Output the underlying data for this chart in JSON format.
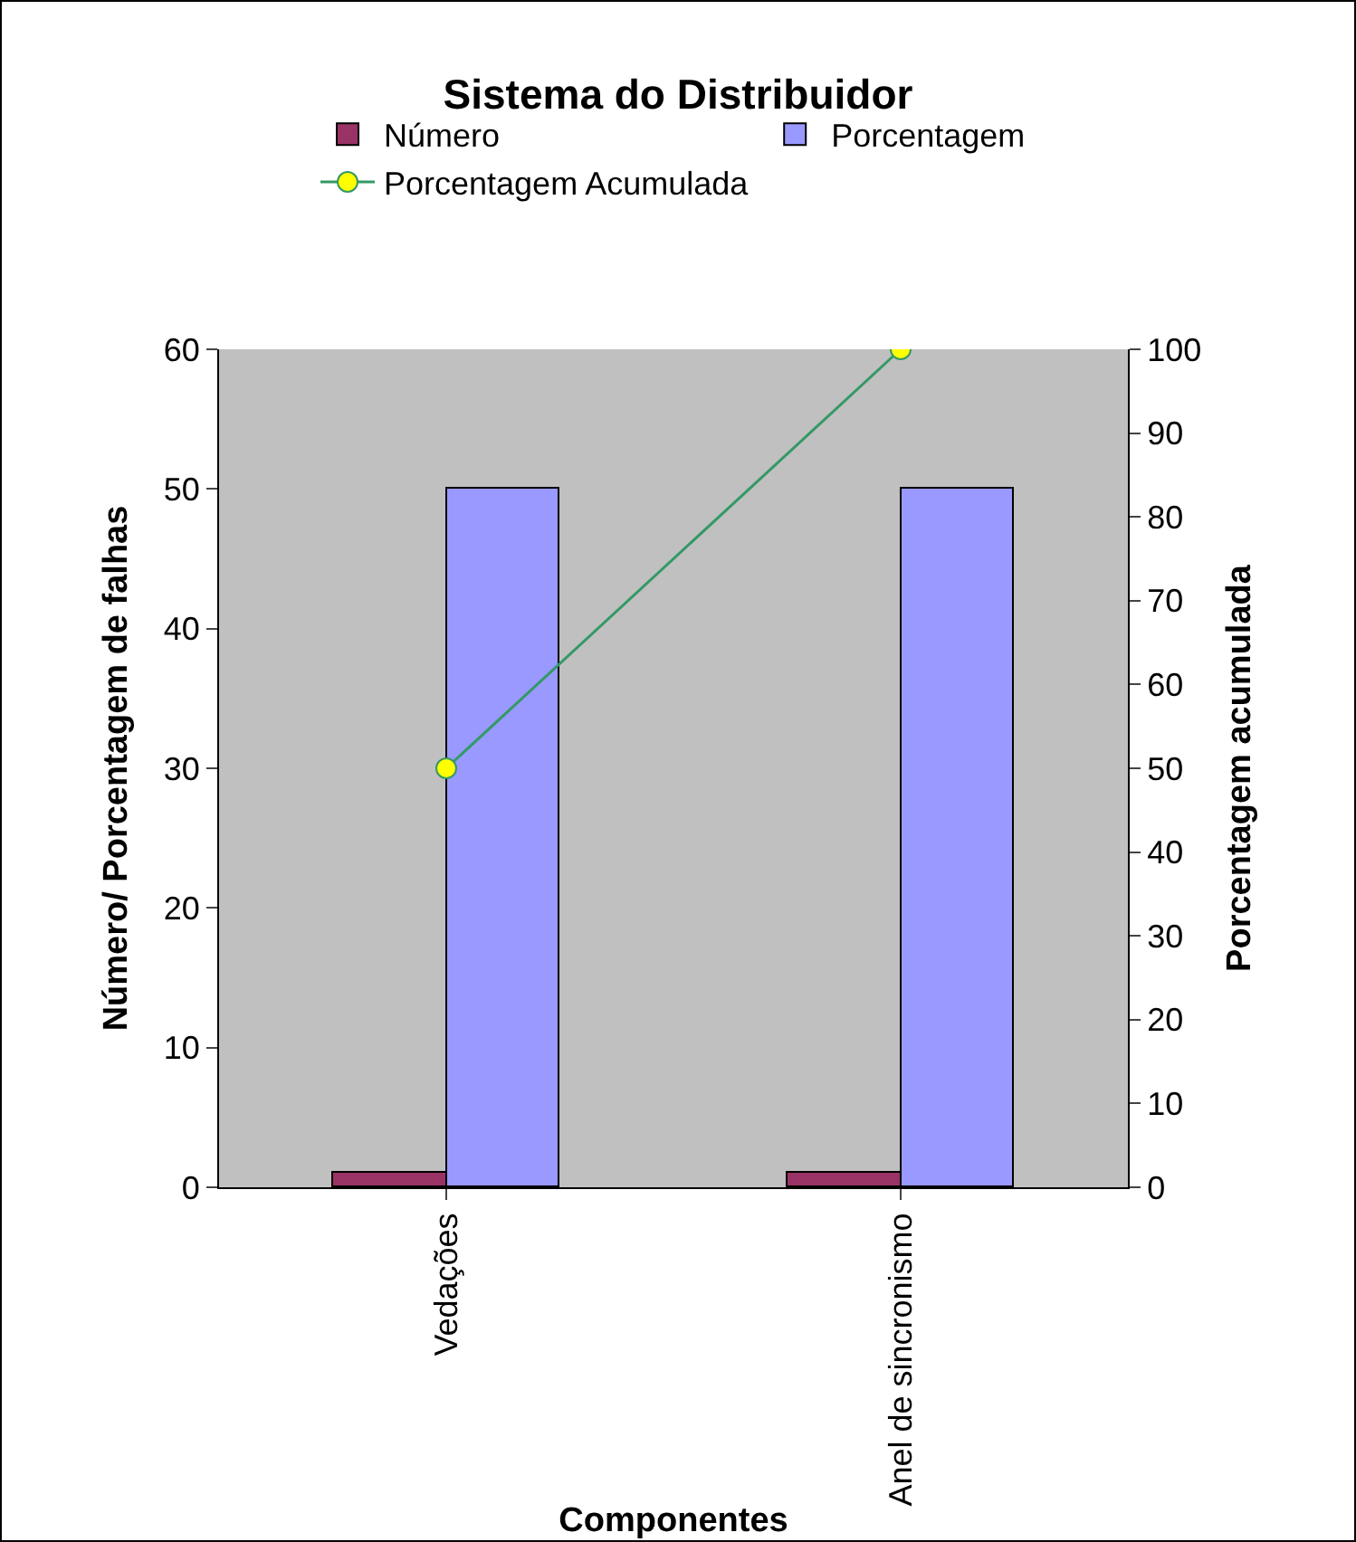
{
  "chart_data": {
    "type": "bar",
    "title": "Sistema do Distribuidor",
    "xlabel": "Componentes",
    "ylabel": "Número/ Porcentagem de falhas",
    "y2label": "Porcentagem acumulada",
    "categories": [
      "Vedações",
      "Anel de sincronismo"
    ],
    "series": [
      {
        "name": "Número",
        "color": "#993366",
        "values": [
          1,
          1
        ]
      },
      {
        "name": "Porcentagem",
        "color": "#9999ff",
        "values": [
          50,
          50
        ]
      },
      {
        "name": "Porcentagem Acumulada",
        "type": "line",
        "axis": "y2",
        "color": "#339966",
        "values": [
          50,
          100
        ]
      }
    ],
    "ylim": [
      0,
      60
    ],
    "yticks": [
      0,
      10,
      20,
      30,
      40,
      50,
      60
    ],
    "y2lim": [
      0,
      100
    ],
    "y2ticks": [
      0,
      10,
      20,
      30,
      40,
      50,
      60,
      70,
      80,
      90,
      100
    ],
    "grid": false,
    "legend": "top",
    "marker": "circle"
  }
}
